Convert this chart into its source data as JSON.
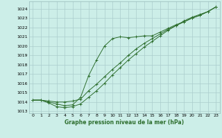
{
  "title": "Graphe pression niveau de la mer (hPa)",
  "background_color": "#cceee8",
  "grid_color": "#aacccc",
  "line_color": "#2d6e2d",
  "xlim": [
    -0.5,
    23.5
  ],
  "ylim": [
    1012.8,
    1024.8
  ],
  "yticks": [
    1013,
    1014,
    1015,
    1016,
    1017,
    1018,
    1019,
    1020,
    1021,
    1022,
    1023,
    1024
  ],
  "xticks": [
    0,
    1,
    2,
    3,
    4,
    5,
    6,
    7,
    8,
    9,
    10,
    11,
    12,
    13,
    14,
    15,
    16,
    17,
    18,
    19,
    20,
    21,
    22,
    23
  ],
  "line1_x": [
    0,
    1,
    2,
    3,
    4,
    5,
    6,
    7,
    8,
    9,
    10,
    11,
    12,
    13,
    14,
    15,
    16,
    17,
    18,
    19,
    20,
    21,
    22,
    23
  ],
  "line1_y": [
    1014.2,
    1014.2,
    1014.1,
    1014.0,
    1014.0,
    1014.1,
    1014.3,
    1015.2,
    1015.9,
    1016.7,
    1017.5,
    1018.2,
    1019.0,
    1019.7,
    1020.3,
    1020.8,
    1021.3,
    1021.8,
    1022.2,
    1022.6,
    1023.0,
    1023.3,
    1023.7,
    1024.2
  ],
  "line2_x": [
    0,
    1,
    2,
    3,
    4,
    5,
    6,
    7,
    8,
    9,
    10,
    11,
    12,
    13,
    14,
    15,
    16,
    17,
    18,
    19,
    20,
    21,
    22,
    23
  ],
  "line2_y": [
    1014.2,
    1014.2,
    1014.0,
    1013.8,
    1013.6,
    1013.7,
    1014.5,
    1016.8,
    1018.5,
    1020.0,
    1020.8,
    1021.0,
    1020.9,
    1021.0,
    1021.1,
    1021.1,
    1021.5,
    1021.9,
    1022.3,
    1022.6,
    1023.0,
    1023.3,
    1023.7,
    1024.2
  ],
  "line3_x": [
    0,
    1,
    2,
    3,
    4,
    5,
    6,
    7,
    8,
    9,
    10,
    11,
    12,
    13,
    14,
    15,
    16,
    17,
    18,
    19,
    20,
    21,
    22,
    23
  ],
  "line3_y": [
    1014.2,
    1014.2,
    1013.9,
    1013.5,
    1013.4,
    1013.5,
    1013.8,
    1014.5,
    1015.2,
    1016.0,
    1016.9,
    1017.7,
    1018.5,
    1019.2,
    1019.9,
    1020.5,
    1021.1,
    1021.7,
    1022.2,
    1022.7,
    1023.1,
    1023.4,
    1023.7,
    1024.2
  ]
}
